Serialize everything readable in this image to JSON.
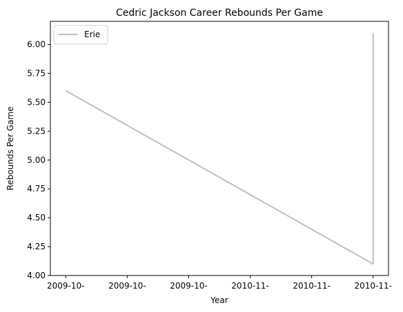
{
  "chart_data": {
    "type": "line",
    "title": "Cedric Jackson Career Rebounds Per Game",
    "xlabel": "Year",
    "ylabel": "Rebounds Per Game",
    "x_tick_labels": [
      "2009-10-",
      "2009-10-",
      "2009-10-",
      "2010-11-",
      "2010-11-",
      "2010-11-"
    ],
    "y_ticks": [
      4.0,
      4.25,
      4.5,
      4.75,
      5.0,
      5.25,
      5.5,
      5.75,
      6.0
    ],
    "y_tick_labels": [
      "4.00",
      "4.25",
      "4.50",
      "4.75",
      "5.00",
      "5.25",
      "5.50",
      "5.75",
      "6.00"
    ],
    "ylim": [
      4.0,
      6.2
    ],
    "xlim": [
      -0.25,
      5.25
    ],
    "grid": false,
    "legend_position": "upper-left",
    "series": [
      {
        "name": "Erie",
        "color": "#bfbfbf",
        "points": [
          {
            "x": 0,
            "y": 5.6
          },
          {
            "x": 5,
            "y": 4.1
          },
          {
            "x": 5,
            "y": 6.1
          }
        ]
      }
    ]
  }
}
